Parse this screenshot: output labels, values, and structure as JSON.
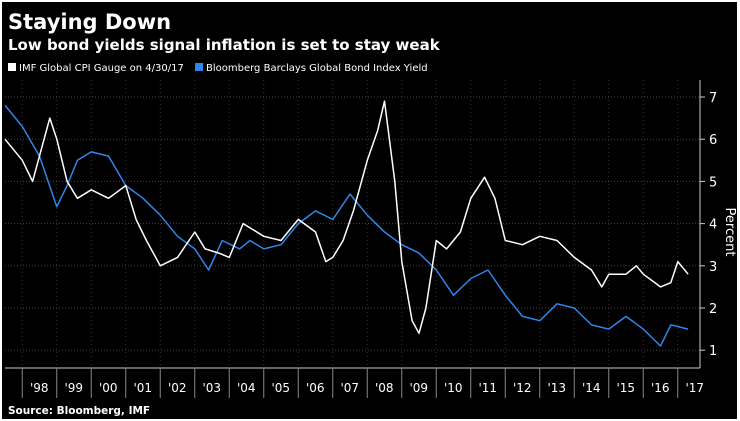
{
  "chart_data": {
    "type": "line",
    "title": "Staying Down",
    "subtitle": "Low bond yields signal inflation is set to stay weak",
    "ylabel": "Percent",
    "xlabel": "",
    "ylim": [
      0.6,
      7.3
    ],
    "xlim": [
      1997.5,
      2017.6
    ],
    "yticks": [
      1,
      2,
      3,
      4,
      5,
      6,
      7
    ],
    "xtick_labels": [
      "'98",
      "'99",
      "'00",
      "'01",
      "'02",
      "'03",
      "'04",
      "'05",
      "'06",
      "'07",
      "'08",
      "'09",
      "'10",
      "'11",
      "'12",
      "'13",
      "'14",
      "'15",
      "'16",
      "'17"
    ],
    "grid": true,
    "legend_position": "top-left",
    "source": "Source: Bloomberg, IMF",
    "series": [
      {
        "name": "IMF Global CPI Gauge on 4/30/17",
        "color": "#ffffff",
        "x": [
          1997.5,
          1998.0,
          1998.3,
          1998.8,
          1999.0,
          1999.3,
          1999.6,
          2000.0,
          2000.5,
          2001.0,
          2001.3,
          2001.6,
          2002.0,
          2002.5,
          2003.0,
          2003.3,
          2003.7,
          2004.0,
          2004.4,
          2005.0,
          2005.5,
          2006.0,
          2006.5,
          2006.8,
          2007.0,
          2007.3,
          2007.6,
          2008.0,
          2008.3,
          2008.5,
          2008.8,
          2009.0,
          2009.3,
          2009.5,
          2009.7,
          2010.0,
          2010.3,
          2010.7,
          2011.0,
          2011.4,
          2011.7,
          2012.0,
          2012.5,
          2013.0,
          2013.5,
          2014.0,
          2014.5,
          2014.8,
          2015.0,
          2015.5,
          2015.8,
          2016.0,
          2016.5,
          2016.8,
          2017.0,
          2017.3
        ],
        "y": [
          6.0,
          5.5,
          5.0,
          6.5,
          6.0,
          5.0,
          4.6,
          4.8,
          4.6,
          4.9,
          4.1,
          3.6,
          3.0,
          3.2,
          3.8,
          3.4,
          3.3,
          3.2,
          4.0,
          3.7,
          3.6,
          4.1,
          3.8,
          3.1,
          3.2,
          3.6,
          4.3,
          5.5,
          6.2,
          6.9,
          5.0,
          3.1,
          1.7,
          1.4,
          2.0,
          3.6,
          3.4,
          3.8,
          4.6,
          5.1,
          4.6,
          3.6,
          3.5,
          3.7,
          3.6,
          3.2,
          2.9,
          2.5,
          2.8,
          2.8,
          3.0,
          2.8,
          2.5,
          2.6,
          3.1,
          2.8
        ]
      },
      {
        "name": "Bloomberg Barclays Global Bond Index Yield",
        "color": "#2f86e8",
        "x": [
          1997.5,
          1998.0,
          1998.5,
          1999.0,
          1999.3,
          1999.6,
          2000.0,
          2000.5,
          2001.0,
          2001.5,
          2002.0,
          2002.5,
          2003.0,
          2003.4,
          2003.8,
          2004.3,
          2004.6,
          2005.0,
          2005.5,
          2006.0,
          2006.5,
          2007.0,
          2007.5,
          2008.0,
          2008.5,
          2009.0,
          2009.5,
          2010.0,
          2010.5,
          2011.0,
          2011.5,
          2012.0,
          2012.5,
          2013.0,
          2013.5,
          2014.0,
          2014.5,
          2015.0,
          2015.5,
          2016.0,
          2016.5,
          2016.8,
          2017.3
        ],
        "y": [
          6.8,
          6.3,
          5.6,
          4.4,
          4.9,
          5.5,
          5.7,
          5.6,
          4.9,
          4.6,
          4.2,
          3.7,
          3.4,
          2.9,
          3.6,
          3.4,
          3.6,
          3.4,
          3.5,
          4.0,
          4.3,
          4.1,
          4.7,
          4.2,
          3.8,
          3.5,
          3.3,
          2.9,
          2.3,
          2.7,
          2.9,
          2.3,
          1.8,
          1.7,
          2.1,
          2.0,
          1.6,
          1.5,
          1.8,
          1.5,
          1.1,
          1.6,
          1.5
        ]
      }
    ]
  }
}
